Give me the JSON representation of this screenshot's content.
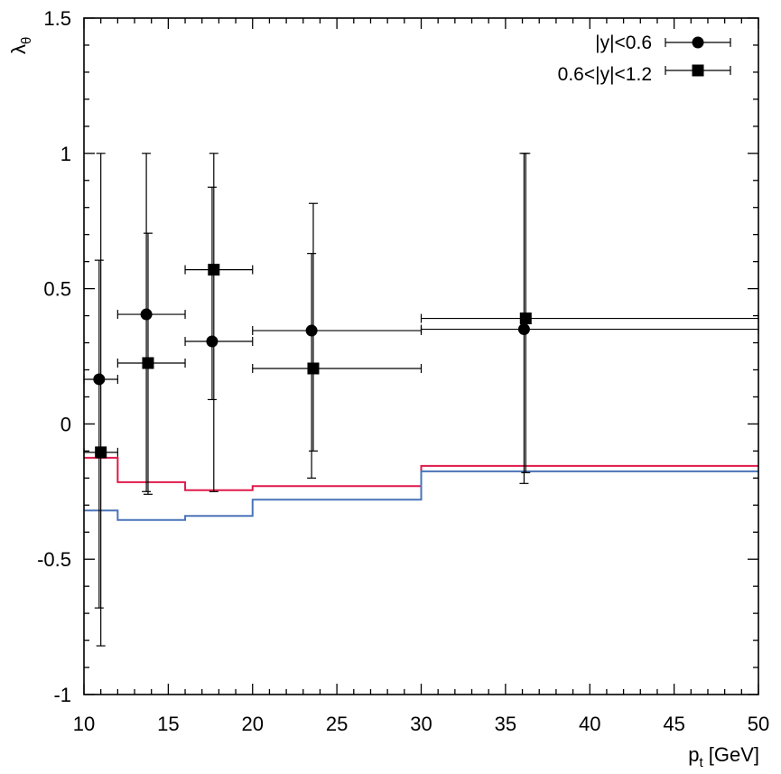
{
  "chart_data": {
    "type": "scatter",
    "title": "",
    "xlabel": "p_t [GeV]",
    "xlabel_main": "p",
    "xlabel_sub": "t",
    "xlabel_unit": " [GeV]",
    "ylabel": "λθ",
    "ylabel_main": "λ",
    "ylabel_sub": "θ",
    "xlim": [
      10,
      50
    ],
    "ylim": [
      -1,
      1.5
    ],
    "x_ticks": [
      "10",
      "15",
      "20",
      "25",
      "30",
      "35",
      "40",
      "45",
      "50"
    ],
    "y_ticks": [
      "-1",
      "-0.5",
      "0",
      "0.5",
      "1",
      "1.5"
    ],
    "grid": false,
    "legend_position": "top-right",
    "series": [
      {
        "name": "|y|<0.6",
        "marker": "circle",
        "color": "#000000",
        "points": [
          {
            "x": 10.9,
            "y": 0.165,
            "xlo": 10,
            "xhi": 12,
            "ylo": -0.68,
            "yhi": 0.605
          },
          {
            "x": 13.7,
            "y": 0.405,
            "xlo": 12,
            "xhi": 16,
            "ylo": -0.25,
            "yhi": 1.0
          },
          {
            "x": 17.6,
            "y": 0.305,
            "xlo": 16,
            "xhi": 20,
            "ylo": 0.09,
            "yhi": 0.875
          },
          {
            "x": 23.5,
            "y": 0.345,
            "xlo": 20,
            "xhi": 30,
            "ylo": -0.2,
            "yhi": 0.63
          },
          {
            "x": 36.1,
            "y": 0.35,
            "xlo": 30,
            "xhi": 50,
            "ylo": -0.22,
            "yhi": 1.0
          }
        ]
      },
      {
        "name": "0.6<|y|<1.2",
        "marker": "square",
        "color": "#000000",
        "points": [
          {
            "x": 11.0,
            "y": -0.105,
            "xlo": 10,
            "xhi": 12,
            "ylo": -0.82,
            "yhi": 1.0
          },
          {
            "x": 13.8,
            "y": 0.225,
            "xlo": 12,
            "xhi": 16,
            "ylo": -0.26,
            "yhi": 0.705
          },
          {
            "x": 17.7,
            "y": 0.57,
            "xlo": 16,
            "xhi": 20,
            "ylo": -0.25,
            "yhi": 1.0
          },
          {
            "x": 23.6,
            "y": 0.205,
            "xlo": 20,
            "xhi": 30,
            "ylo": -0.1,
            "yhi": 0.815
          },
          {
            "x": 36.2,
            "y": 0.39,
            "xlo": 30,
            "xhi": 50,
            "ylo": -0.18,
            "yhi": 1.0
          }
        ]
      }
    ],
    "step_lines": [
      {
        "name": "red-prediction",
        "color": "#e0194a",
        "edges": [
          10,
          12,
          16,
          20,
          30,
          50
        ],
        "values": [
          -0.125,
          -0.215,
          -0.245,
          -0.23,
          -0.155
        ]
      },
      {
        "name": "blue-prediction",
        "color": "#4a73b8",
        "edges": [
          10,
          12,
          16,
          20,
          30,
          50
        ],
        "values": [
          -0.32,
          -0.355,
          -0.34,
          -0.28,
          -0.175
        ]
      }
    ]
  }
}
